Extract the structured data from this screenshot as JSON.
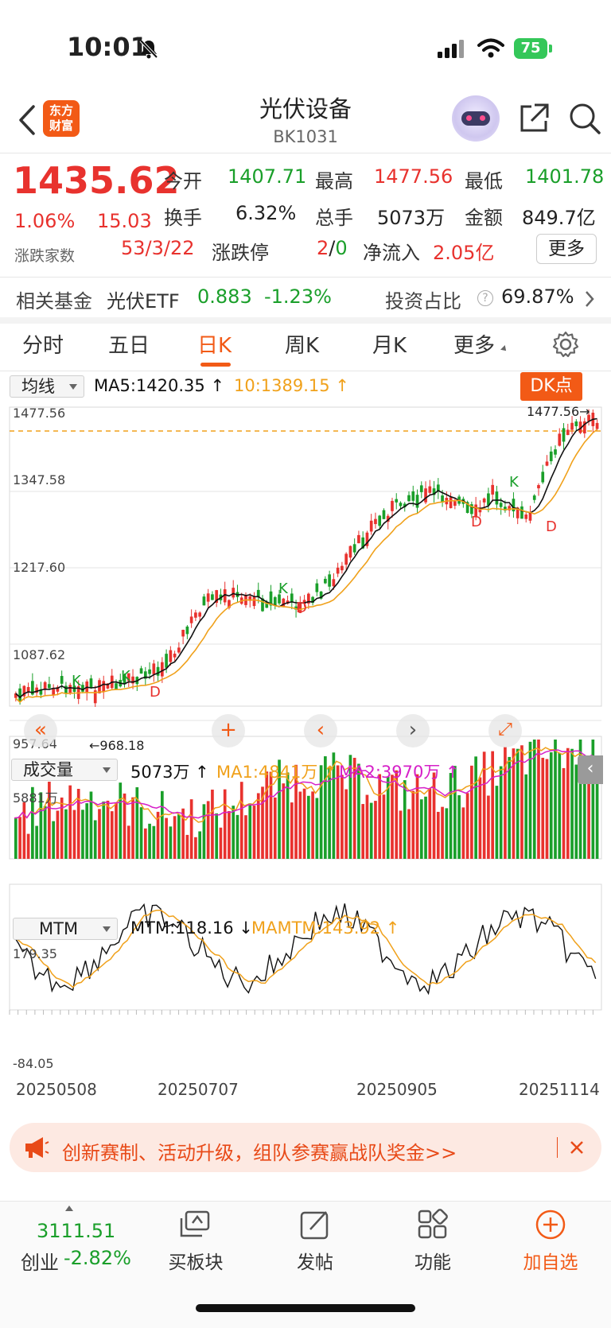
{
  "status_bar": {
    "time": "10:01",
    "battery": "75"
  },
  "header": {
    "logo_line1": "东方",
    "logo_line2": "财富",
    "title": "光伏设备",
    "code": "BK1031"
  },
  "quote": {
    "price": "1435.62",
    "change_pct": "1.06%",
    "change": "15.03",
    "open_label": "今开",
    "open": "1407.71",
    "high_label": "最高",
    "high": "1477.56",
    "low_label": "最低",
    "low": "1401.78",
    "turnover_label": "换手",
    "turnover": "6.32%",
    "volume_label": "总手",
    "volume": "5073万",
    "amount_label": "金额",
    "amount": "849.7亿",
    "breadth_label": "涨跌家数",
    "breadth": "53/3/22",
    "limit_label": "涨跌停",
    "limit_up": "2",
    "limit_sep": "/",
    "limit_down": "0",
    "netflow_label": "净流入",
    "netflow": "2.05亿",
    "more_label": "更多"
  },
  "fund": {
    "label": "相关基金",
    "name": "光伏ETF",
    "price": "0.883",
    "change": "-1.23%",
    "ratio_label": "投资占比",
    "ratio": "69.87%"
  },
  "tabs": [
    "分时",
    "五日",
    "日K",
    "周K",
    "月K",
    "更多"
  ],
  "active_tab": 2,
  "kline": {
    "indicator_select": "均线",
    "ma5": "MA5:1420.35",
    "ma10": "10:1389.15",
    "dk_label": "DK点",
    "y_labels": [
      "1477.56",
      "1347.58",
      "1217.60",
      "1087.62",
      "957.64"
    ],
    "max_marker": "1477.56",
    "min_marker": "968.18",
    "signals": [
      "K",
      "K",
      "D",
      "K",
      "D",
      "D",
      "K",
      "D"
    ]
  },
  "volume": {
    "select": "成交量",
    "value": "5073万",
    "ma1": "MA1:4841万",
    "ma2": "MA2:3970万",
    "top_label": "5881万"
  },
  "mtm": {
    "select": "MTM",
    "value": "MTM:118.16",
    "mamtm": "MAMTM:143.92",
    "top_label": "179.35",
    "bottom_label": "-84.05"
  },
  "dates": [
    "20250508",
    "20250707",
    "20250905",
    "20251114"
  ],
  "banner": {
    "text": "创新赛制、活动升级，组队参赛赢战队奖金>>"
  },
  "bottom_nav": {
    "index_value": "3111.51",
    "index_name": "创业",
    "index_change": "-2.82%",
    "items": [
      "买板块",
      "发帖",
      "功能",
      "加自选"
    ]
  },
  "colors": {
    "accent": "#f25a16",
    "up": "#e8322e",
    "down": "#1a9f2a",
    "ma5": "#111111",
    "ma10": "#f0a11b",
    "ma2": "#d620c8"
  }
}
